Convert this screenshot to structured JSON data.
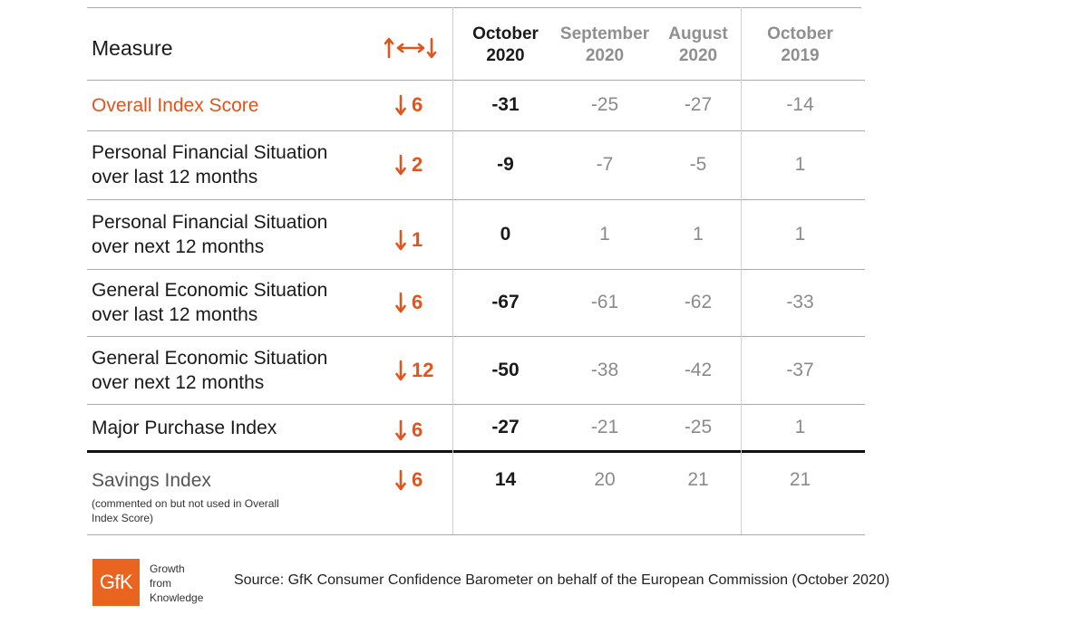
{
  "table": {
    "header": {
      "measure": "Measure",
      "col1": [
        "October",
        "2020"
      ],
      "col2": [
        "September",
        "2020"
      ],
      "col3": [
        "August",
        "2020"
      ],
      "col4": [
        "October",
        "2019"
      ]
    },
    "rows": [
      {
        "label": [
          "Overall Index Score"
        ],
        "change": "6",
        "v1": "-31",
        "v2": "-25",
        "v3": "-27",
        "v4": "-14"
      },
      {
        "label": [
          "Personal Financial Situation",
          "over last 12 months"
        ],
        "change": "2",
        "v1": "-9",
        "v2": "-7",
        "v3": "-5",
        "v4": "1"
      },
      {
        "label": [
          "Personal Financial Situation",
          "over next 12 months"
        ],
        "change": "1",
        "v1": "0",
        "v2": "1",
        "v3": "1",
        "v4": "1"
      },
      {
        "label": [
          "General Economic Situation",
          "over last 12 months"
        ],
        "change": "6",
        "v1": "-67",
        "v2": "-61",
        "v3": "-62",
        "v4": "-33"
      },
      {
        "label": [
          "General Economic Situation",
          "over next 12 months"
        ],
        "change": "12",
        "v1": "-50",
        "v2": "-38",
        "v3": "-42",
        "v4": "-37"
      },
      {
        "label": [
          "Major Purchase Index"
        ],
        "change": "6",
        "v1": "-27",
        "v2": "-21",
        "v3": "-25",
        "v4": "1"
      },
      {
        "label": [
          "Savings Index"
        ],
        "change": "6",
        "v1": "14",
        "v2": "20",
        "v3": "21",
        "v4": "21"
      }
    ],
    "savings_note": "(commented on but not used in Overall Index Score)"
  },
  "logo": {
    "text": "GfK",
    "tagline": [
      "Growth",
      "from",
      "Knowledge"
    ]
  },
  "source": "Source: GfK Consumer Confidence Barometer on behalf of the European Commission (October 2020)",
  "colors": {
    "accent": "#e2541c",
    "logo": "#e9641f",
    "muted_value": "#8a8a8a",
    "rule": "#a9a9a9",
    "divider": "#111111"
  },
  "icons": {
    "header_change": "up-left-right-down-arrows-icon",
    "row_change": "arrow-down-icon"
  }
}
